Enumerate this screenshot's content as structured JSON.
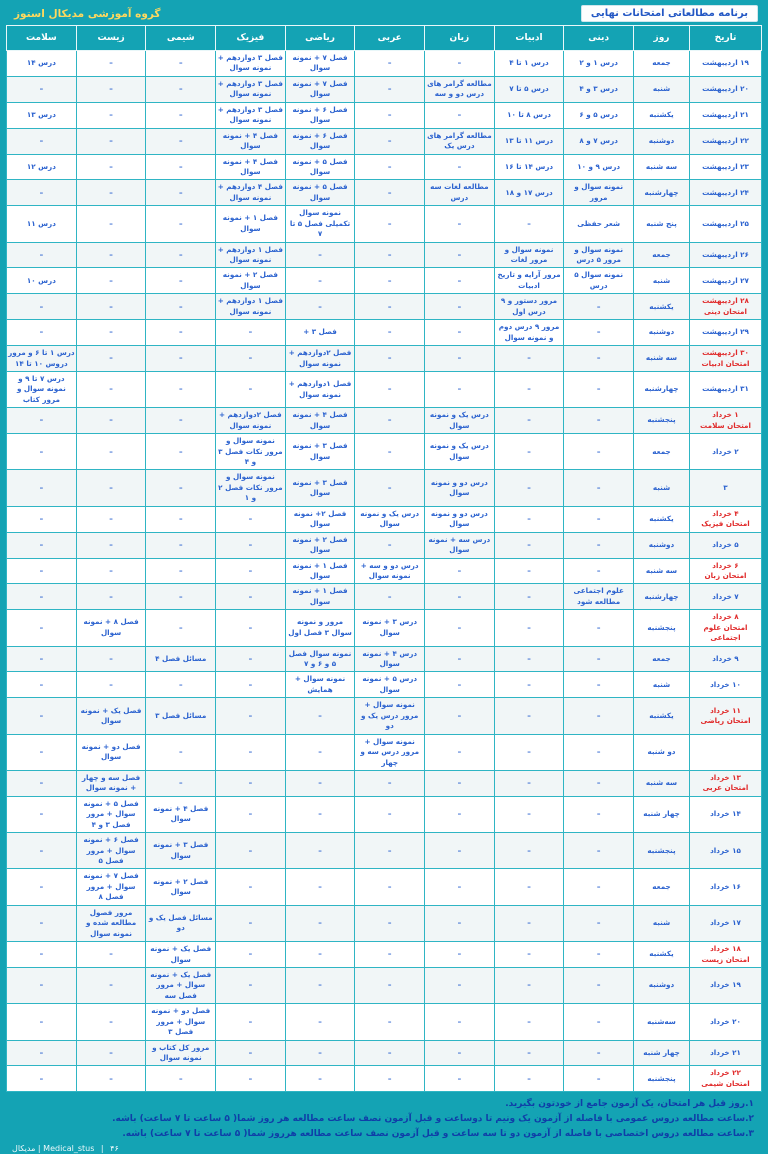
{
  "page": {
    "title": "برنامه مطالعاتی امتحانات نهایی",
    "brand": "گروه آموزشی مدیکال استوز"
  },
  "colors": {
    "teal_background": "#14a3b4",
    "cell_text_blue": "#2b62cf",
    "exam_red": "#e02a2a",
    "brand_yellow": "#ffd95e",
    "note_text": "#0f3ea8"
  },
  "table": {
    "headers": [
      "تاریخ",
      "روز",
      "دینی",
      "ادبیات",
      "زبان",
      "عربی",
      "ریاضی",
      "فیزیک",
      "شیمی",
      "زیست",
      "سلامت"
    ],
    "header_keys": [
      "tarikh",
      "rooz",
      "dini",
      "adabiat",
      "zaban",
      "arabi",
      "riazi",
      "fizik",
      "shimi",
      "zist",
      "salamat"
    ],
    "empty_marker": "–",
    "rows": [
      {
        "date": "۱۹ اردیبهشت",
        "exam": "",
        "day": "جمعه",
        "cells": [
          "درس ۱ و ۲",
          "درس ۱ تا ۴",
          "–",
          "–",
          "فصل ۷ + نمونه سوال",
          "فصل ۳ دوازدهم + نمونه سوال",
          "–",
          "–",
          "درس ۱۴"
        ]
      },
      {
        "date": "۲۰ اردیبهشت",
        "exam": "",
        "day": "شنبه",
        "cells": [
          "درس ۳ و ۴",
          "درس ۵ تا ۷",
          "مطالعه گرامر های درس دو و سه",
          "–",
          "فصل ۷ + نمونه سوال",
          "فصل ۳ دوازدهم + نمونه سوال",
          "–",
          "–",
          "–"
        ]
      },
      {
        "date": "۲۱ اردیبهشت",
        "exam": "",
        "day": "یکشنبه",
        "cells": [
          "درس ۵ و ۶",
          "درس ۸ تا ۱۰",
          "–",
          "–",
          "فصل ۶ + نمونه سوال",
          "فصل ۳ دوازدهم + نمونه سوال",
          "–",
          "–",
          "درس ۱۳"
        ]
      },
      {
        "date": "۲۲ اردیبهشت",
        "exam": "",
        "day": "دوشنبه",
        "cells": [
          "درس ۷ و ۸",
          "درس ۱۱ تا ۱۳",
          "مطالعه گرامر های درس یک",
          "–",
          "فصل ۶ + نمونه سوال",
          "فصل ۴ + نمونه سوال",
          "–",
          "–",
          "–"
        ]
      },
      {
        "date": "۲۳ اردیبهشت",
        "exam": "",
        "day": "سه شنبه",
        "cells": [
          "درس ۹ و ۱۰",
          "درس ۱۴ تا ۱۶",
          "–",
          "–",
          "فصل ۵ + نمونه سوال",
          "فصل ۴ + نمونه سوال",
          "–",
          "–",
          "درس ۱۲"
        ]
      },
      {
        "date": "۲۴ اردیبهشت",
        "exam": "",
        "day": "چهارشنبه",
        "cells": [
          "نمونه سوال و مرور",
          "درس ۱۷ و ۱۸",
          "مطالعه لغات سه درس",
          "–",
          "فصل ۵ + نمونه سوال",
          "فصل ۴ دوازدهم + نمونه سوال",
          "–",
          "–",
          "–"
        ]
      },
      {
        "date": "۲۵ اردیبهشت",
        "exam": "",
        "day": "پنج شنبه",
        "cells": [
          "شعر حفظی",
          "–",
          "–",
          "–",
          "نمونه سوال تکمیلی فصل ۵ تا ۷",
          "فصل ۱ + نمونه سوال",
          "–",
          "–",
          "درس ۱۱"
        ]
      },
      {
        "date": "۲۶ اردیبهشت",
        "exam": "",
        "day": "جمعه",
        "cells": [
          "نمونه سوال و مرور ۵ درس",
          "نمونه سوال و مرور لغات",
          "–",
          "–",
          "–",
          "فصل ۱ دوازدهم + نمونه سوال",
          "–",
          "–",
          "–"
        ]
      },
      {
        "date": "۲۷ اردیبهشت",
        "exam": "",
        "day": "شنبه",
        "cells": [
          "نمونه سوال ۵ درس",
          "مرور آرایه و تاریخ ادبیات",
          "–",
          "–",
          "–",
          "فصل ۲ + نمونه سوال",
          "–",
          "–",
          "درس ۱۰"
        ]
      },
      {
        "date": "۲۸ اردیبهشت",
        "exam": "امتحان دینی",
        "day": "یکشنبه",
        "cells": [
          "–",
          "مرور دستور و ۹ درس اول",
          "–",
          "–",
          "–",
          "فصل ۱ دوازدهم + نمونه سوال",
          "–",
          "–",
          "–"
        ]
      },
      {
        "date": "۲۹ اردیبهشت",
        "exam": "",
        "day": "دوشنبه",
        "cells": [
          "–",
          "مرور ۹ درس دوم و نمونه سوال",
          "–",
          "–",
          "فصل ۳ +",
          "–",
          "–",
          "–",
          "–"
        ]
      },
      {
        "date": "۳۰ اردیبهشت",
        "exam": "امتحان ادبیات",
        "day": "سه شنبه",
        "cells": [
          "–",
          "–",
          "–",
          "–",
          "فصل ۲دوازدهم + نمونه سوال",
          "–",
          "–",
          "–",
          "درس ۱ تا ۶ و مرور دروس ۱۰ تا ۱۴"
        ]
      },
      {
        "date": "۳۱ اردیبهشت",
        "exam": "",
        "day": "چهارشنبه",
        "cells": [
          "–",
          "–",
          "–",
          "–",
          "فصل ۱دوازدهم + نمونه سوال",
          "–",
          "–",
          "–",
          "درس ۷ تا ۹ و نمونه سوال و مرور کتاب"
        ]
      },
      {
        "date": "۱ خرداد",
        "exam": "امتحان سلامت",
        "day": "پنجشنبه",
        "cells": [
          "–",
          "–",
          "درس یک و نمونه سوال",
          "–",
          "فصل ۴ + نمونه سوال",
          "فصل ۲دوازدهم + نمونه سوال",
          "–",
          "–",
          "–"
        ]
      },
      {
        "date": "۲ خرداد",
        "exam": "",
        "day": "جمعه",
        "cells": [
          "–",
          "–",
          "درس یک و نمونه سوال",
          "–",
          "فصل ۳ + نمونه سوال",
          "نمونه سوال و مرور نکات فصل ۳ و ۴",
          "–",
          "–",
          "–"
        ]
      },
      {
        "date": "۳",
        "exam": "",
        "day": "شنبه",
        "cells": [
          "–",
          "–",
          "درس دو و نمونه سوال",
          "–",
          "فصل ۳ + نمونه سوال",
          "نمونه سوال و مرور نکات فصل ۲ و ۱",
          "–",
          "–",
          "–"
        ]
      },
      {
        "date": "۴ خرداد",
        "exam": "امتحان فیزیک",
        "day": "یکشنبه",
        "cells": [
          "–",
          "–",
          "درس دو و نمونه سوال",
          "درس یک و نمونه سوال",
          "فصل ۲+ نمونه سوال",
          "–",
          "–",
          "–",
          "–"
        ]
      },
      {
        "date": "۵ خرداد",
        "exam": "",
        "day": "دوشنبه",
        "cells": [
          "–",
          "–",
          "درس سه + نمونه سوال",
          "–",
          "فصل ۲ + نمونه سوال",
          "–",
          "–",
          "–",
          "–"
        ]
      },
      {
        "date": "۶ خرداد",
        "exam": "امتحان زبان",
        "day": "سه شنبه",
        "cells": [
          "–",
          "–",
          "–",
          "درس دو و سه + نمونه سوال",
          "فصل ۱ + نمونه سوال",
          "–",
          "–",
          "–",
          "–"
        ]
      },
      {
        "date": "۷ خرداد",
        "exam": "",
        "day": "چهارشنبه",
        "cells": [
          "علوم اجتماعی مطالعه شود",
          "–",
          "–",
          "–",
          "فصل ۱ + نمونه سوال",
          "–",
          "–",
          "–",
          "–"
        ]
      },
      {
        "date": "۸ خرداد",
        "exam": "امتحان علوم اجتماعی",
        "day": "پنجشنبه",
        "cells": [
          "–",
          "–",
          "–",
          "درس ۳ + نمونه سوال",
          "مرور و نمونه سوال ۳ فصل اول",
          "–",
          "–",
          "فصل ۸ + نمونه سوال",
          "–"
        ]
      },
      {
        "date": "۹ خرداد",
        "exam": "",
        "day": "جمعه",
        "cells": [
          "–",
          "–",
          "–",
          "درس ۴ + نمونه سوال",
          "نمونه سوال فصل ۵ و ۶ و ۷",
          "–",
          "مسائل فصل ۴",
          "–",
          "–"
        ]
      },
      {
        "date": "۱۰ خرداد",
        "exam": "",
        "day": "شنبه",
        "cells": [
          "–",
          "–",
          "–",
          "درس ۵ + نمونه سوال",
          "نمونه سوال + همایش",
          "–",
          "–",
          "–",
          "–"
        ]
      },
      {
        "date": "۱۱ خرداد",
        "exam": "امتحان ریاضی",
        "day": "یکشنبه",
        "cells": [
          "–",
          "–",
          "–",
          "نمونه سوال + مرور درس یک و دو",
          "–",
          "–",
          "مسائل فصل ۳",
          "فصل یک + نمونه سوال",
          "–"
        ]
      },
      {
        "date": "",
        "exam": "",
        "day": "دو شنبه",
        "cells": [
          "–",
          "–",
          "–",
          "نمونه سوال + مرور درس سه و چهار",
          "–",
          "–",
          "–",
          "فصل دو + نمونه سوال",
          "–"
        ]
      },
      {
        "date": "۱۳ خرداد",
        "exam": "امتحان عربی",
        "day": "سه شنبه",
        "cells": [
          "–",
          "–",
          "–",
          "–",
          "–",
          "–",
          "–",
          "فصل سه و چهار + نمونه سوال",
          "–"
        ]
      },
      {
        "date": "۱۴ خرداد",
        "exam": "",
        "day": "چهار شنبه",
        "cells": [
          "–",
          "–",
          "–",
          "–",
          "–",
          "–",
          "فصل ۴ + نمونه سوال",
          "فصل ۵ + نمونه سوال + مرور فصل ۳ و ۴",
          "–"
        ]
      },
      {
        "date": "۱۵ خرداد",
        "exam": "",
        "day": "پنجشنبه",
        "cells": [
          "–",
          "–",
          "–",
          "–",
          "–",
          "–",
          "فصل ۳ + نمونه سوال",
          "فصل ۶ + نمونه سوال + مرور فصل ۵",
          "–"
        ]
      },
      {
        "date": "۱۶ خرداد",
        "exam": "",
        "day": "جمعه",
        "cells": [
          "–",
          "–",
          "–",
          "–",
          "–",
          "–",
          "فصل ۲ + نمونه سوال",
          "فصل ۷ + نمونه سوال + مرور فصل ۸",
          "–"
        ]
      },
      {
        "date": "۱۷ خرداد",
        "exam": "",
        "day": "شنبه",
        "cells": [
          "–",
          "–",
          "–",
          "–",
          "–",
          "–",
          "مسائل فصل یک و دو",
          "مرور فصول مطالعه شده و نمونه سوال",
          "–"
        ]
      },
      {
        "date": "۱۸ خرداد",
        "exam": "امتحان زیست",
        "day": "یکشنبه",
        "cells": [
          "–",
          "–",
          "–",
          "–",
          "–",
          "–",
          "فصل یک + نمونه سوال",
          "–",
          "–"
        ]
      },
      {
        "date": "۱۹ خرداد",
        "exam": "",
        "day": "دوشنبه",
        "cells": [
          "–",
          "–",
          "–",
          "–",
          "–",
          "–",
          "فصل یک + نمونه سوال + مرور فصل سه",
          "–",
          "–"
        ]
      },
      {
        "date": "۲۰ خرداد",
        "exam": "",
        "day": "سه‌شنبه",
        "cells": [
          "–",
          "–",
          "–",
          "–",
          "–",
          "–",
          "فصل دو + نمونه سوال + مرور فصل ۳",
          "–",
          "–"
        ]
      },
      {
        "date": "۲۱ خرداد",
        "exam": "",
        "day": "چهار شنبه",
        "cells": [
          "–",
          "–",
          "–",
          "–",
          "–",
          "–",
          "مرور کل کتاب و نمونه سوال",
          "–",
          "–"
        ]
      },
      {
        "date": "۲۲ خرداد",
        "exam": "امتحان شیمی",
        "day": "پنجشنبه",
        "cells": [
          "–",
          "–",
          "–",
          "–",
          "–",
          "–",
          "–",
          "–",
          "–"
        ]
      }
    ]
  },
  "notes": [
    "۱.روز قبل هر امتحان، یک آزمون جامع از خودتون بگیرید.",
    "۲.ساعت مطالعه دروس عمومی با فاصله از آزمون یک ونیم تا دوساعت و قبل آزمون نصف ساعت مطالعه هر روز شما( ۵ ساعت تا ۷ ساعت) باشه.",
    "۳.ساعت مطالعه دروس اختصاصی با فاصله از آزمون دو تا سه ساعت و قبل آزمون نصف ساعت مطالعه هرروز شما( ۵ ساعت تا ۷ ساعت) باشه."
  ],
  "footer": {
    "brand": "مدیکال | Medical_stus",
    "page": "۴۶"
  }
}
